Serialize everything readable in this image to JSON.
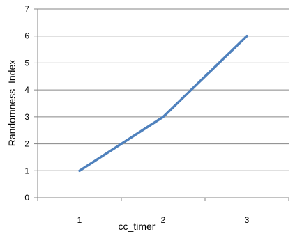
{
  "chart_data": {
    "type": "line",
    "title": "",
    "xlabel": "cc_timer",
    "ylabel": "Randomness_Index",
    "categories": [
      "1",
      "2",
      "3"
    ],
    "series": [
      {
        "values": [
          1,
          3,
          6
        ],
        "color": "#4F81BD"
      }
    ],
    "ylim": [
      0,
      7
    ],
    "yticks": [
      "0",
      "1",
      "2",
      "3",
      "4",
      "5",
      "6",
      "7"
    ],
    "grid": true,
    "legend": "none"
  }
}
